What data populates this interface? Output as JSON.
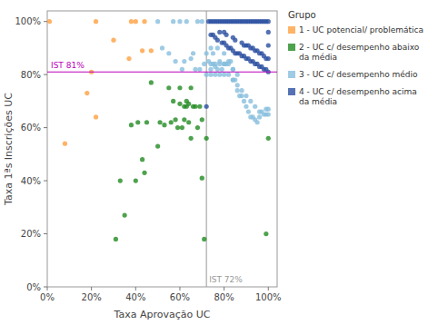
{
  "chart_data": {
    "type": "scatter",
    "xlabel": "Taxa Aprovação UC",
    "ylabel": "Taxa 1ªs Inscrições UC",
    "legend_title": "Grupo",
    "legend": "right",
    "grid": false,
    "marker": "circle",
    "background_color": "#ffffff",
    "reference_lines": [
      {
        "axis": "y",
        "value": 0.81,
        "label": "IST 81%",
        "color": "#bb00bb"
      },
      {
        "axis": "x",
        "value": 0.72,
        "label": "IST 72%",
        "color": "#999999"
      }
    ],
    "xlim": [
      0.0,
      1.04
    ],
    "ylim": [
      0.0,
      1.04
    ],
    "xticks": [
      {
        "value": 0.0,
        "label": "0%"
      },
      {
        "value": 0.2,
        "label": "20%"
      },
      {
        "value": 0.4,
        "label": "40%"
      },
      {
        "value": 0.6,
        "label": "60%"
      },
      {
        "value": 0.8,
        "label": "80%"
      },
      {
        "value": 1.0,
        "label": "100%"
      }
    ],
    "yticks": [
      {
        "value": 0.0,
        "label": "0%"
      },
      {
        "value": 0.2,
        "label": "20%"
      },
      {
        "value": 0.4,
        "label": "40%"
      },
      {
        "value": 0.6,
        "label": "60%"
      },
      {
        "value": 0.8,
        "label": "80%"
      },
      {
        "value": 1.0,
        "label": "100%"
      }
    ],
    "series": [
      {
        "name": "1 - UC potencial/ problemática",
        "color": "#FFA040",
        "x": [
          0.01,
          0.08,
          0.18,
          0.2,
          0.22,
          0.22,
          0.3,
          0.37,
          0.38,
          0.4,
          0.43,
          0.44,
          0.47
        ],
        "values": [
          1.0,
          0.54,
          0.73,
          0.81,
          0.64,
          1.0,
          0.93,
          0.86,
          1.0,
          1.0,
          0.89,
          1.0,
          0.89
        ]
      },
      {
        "name": "2 - UC c/ desempenho abaixo\nda média",
        "color": "#228B22",
        "x": [
          0.31,
          0.33,
          0.35,
          0.38,
          0.4,
          0.41,
          0.43,
          0.44,
          0.45,
          0.47,
          0.5,
          0.51,
          0.53,
          0.55,
          0.56,
          0.57,
          0.58,
          0.59,
          0.6,
          0.6,
          0.61,
          0.62,
          0.62,
          0.63,
          0.63,
          0.64,
          0.64,
          0.65,
          0.65,
          0.66,
          0.67,
          0.68,
          0.69,
          0.7,
          0.7,
          0.71,
          0.72,
          0.99,
          1.0
        ],
        "values": [
          0.18,
          0.4,
          0.27,
          0.61,
          0.4,
          0.62,
          0.48,
          0.43,
          0.62,
          0.77,
          0.53,
          0.62,
          0.61,
          0.75,
          0.62,
          0.7,
          0.63,
          0.6,
          0.69,
          0.75,
          0.6,
          0.63,
          0.68,
          0.68,
          0.7,
          0.62,
          0.69,
          0.56,
          0.75,
          0.68,
          0.68,
          0.6,
          0.68,
          0.41,
          0.63,
          0.18,
          0.56,
          0.2,
          0.56
        ]
      },
      {
        "name": "3 - UC c/ desempenho médio",
        "color": "#87BEDD",
        "x": [
          0.5,
          0.52,
          0.55,
          0.57,
          0.58,
          0.6,
          0.61,
          0.62,
          0.63,
          0.65,
          0.66,
          0.67,
          0.68,
          0.69,
          0.7,
          0.71,
          0.72,
          0.73,
          0.74,
          0.74,
          0.75,
          0.75,
          0.76,
          0.77,
          0.77,
          0.78,
          0.79,
          0.8,
          0.8,
          0.81,
          0.82,
          0.83,
          0.84,
          0.84,
          0.85,
          0.86,
          0.87,
          0.88,
          0.89,
          0.9,
          0.91,
          0.92,
          0.93,
          0.94,
          0.95,
          0.96,
          0.97,
          0.98,
          0.99,
          1.0,
          0.72,
          0.74,
          0.76,
          0.78,
          0.8,
          0.82,
          0.84,
          0.86,
          0.88,
          0.9,
          0.92,
          0.94,
          0.96,
          0.74,
          0.76,
          0.78,
          0.8,
          0.82,
          0.84,
          0.86,
          0.99,
          1.0
        ],
        "values": [
          1.0,
          0.9,
          0.88,
          1.0,
          0.85,
          1.0,
          0.82,
          0.85,
          1.0,
          0.86,
          0.88,
          0.82,
          1.0,
          0.82,
          1.0,
          0.84,
          0.88,
          0.85,
          0.82,
          0.9,
          0.84,
          0.88,
          0.83,
          0.82,
          0.9,
          0.85,
          0.82,
          0.84,
          0.88,
          0.84,
          0.85,
          0.85,
          0.78,
          0.82,
          0.78,
          0.74,
          0.72,
          0.72,
          0.7,
          0.68,
          0.66,
          0.64,
          0.64,
          0.63,
          0.62,
          0.64,
          0.66,
          0.65,
          0.65,
          0.65,
          0.8,
          0.8,
          0.8,
          0.8,
          0.8,
          0.8,
          0.78,
          0.76,
          0.74,
          0.72,
          0.7,
          0.68,
          0.66,
          0.84,
          0.84,
          0.84,
          0.84,
          0.84,
          0.82,
          0.8,
          0.67,
          0.67
        ]
      },
      {
        "name": "4 - UC c/ desempenho acima\nda média",
        "color": "#2B4FA0",
        "x": [
          0.72,
          0.73,
          0.74,
          0.74,
          0.75,
          0.75,
          0.76,
          0.76,
          0.77,
          0.77,
          0.78,
          0.78,
          0.79,
          0.79,
          0.8,
          0.8,
          0.8,
          0.81,
          0.81,
          0.81,
          0.82,
          0.82,
          0.83,
          0.83,
          0.84,
          0.84,
          0.84,
          0.85,
          0.85,
          0.85,
          0.86,
          0.86,
          0.87,
          0.87,
          0.88,
          0.88,
          0.88,
          0.89,
          0.89,
          0.89,
          0.9,
          0.9,
          0.9,
          0.91,
          0.91,
          0.91,
          0.92,
          0.92,
          0.92,
          0.93,
          0.93,
          0.93,
          0.94,
          0.94,
          0.94,
          0.95,
          0.95,
          0.95,
          0.96,
          0.96,
          0.96,
          0.97,
          0.97,
          0.97,
          0.98,
          0.98,
          0.98,
          0.99,
          0.99,
          0.99,
          1.0,
          1.0,
          1.0,
          1.0,
          1.0
        ],
        "values": [
          0.68,
          1.0,
          0.95,
          1.0,
          0.95,
          1.0,
          0.94,
          1.0,
          0.93,
          1.0,
          0.96,
          1.0,
          0.92,
          1.0,
          0.92,
          0.96,
          1.0,
          0.91,
          0.95,
          1.0,
          0.9,
          1.0,
          0.9,
          1.0,
          0.89,
          0.94,
          1.0,
          0.88,
          0.93,
          1.0,
          0.88,
          1.0,
          0.88,
          1.0,
          0.87,
          0.92,
          1.0,
          0.87,
          0.91,
          1.0,
          0.86,
          0.91,
          1.0,
          0.86,
          0.91,
          1.0,
          0.85,
          0.9,
          1.0,
          0.85,
          0.9,
          1.0,
          0.84,
          0.89,
          1.0,
          0.84,
          0.89,
          1.0,
          0.83,
          0.88,
          1.0,
          0.83,
          0.88,
          1.0,
          0.82,
          0.87,
          1.0,
          0.82,
          0.86,
          1.0,
          0.81,
          0.86,
          0.91,
          0.96,
          1.0
        ]
      }
    ]
  }
}
